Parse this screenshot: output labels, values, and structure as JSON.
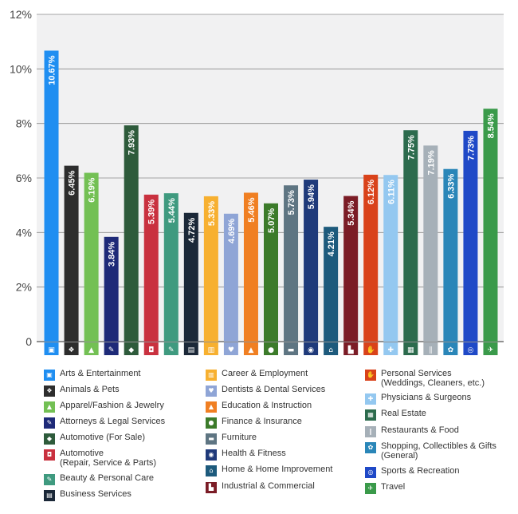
{
  "chart_data": {
    "type": "bar",
    "y_ticks": [
      "12%",
      "10%",
      "8%",
      "6%",
      "4%",
      "2%",
      "0"
    ],
    "ylim": [
      0,
      12
    ],
    "grid": true,
    "legend_position": "bottom",
    "value_label_color": "#ffffff",
    "categories": [
      {
        "name": "Arts & Entertainment",
        "value": 10.67,
        "label": "10.67%",
        "color": "#1f8ef1",
        "icon": "▣",
        "icon_name": "picture-icon"
      },
      {
        "name": "Animals & Pets",
        "value": 6.45,
        "label": "6.45%",
        "color": "#2d2d2d",
        "icon": "❖",
        "icon_name": "paw-icon"
      },
      {
        "name": "Apparel/Fashion & Jewelry",
        "value": 6.19,
        "label": "6.19%",
        "color": "#73c054",
        "icon": "▲",
        "icon_name": "shirt-icon"
      },
      {
        "name": "Attorneys & Legal Services",
        "value": 3.84,
        "label": "3.84%",
        "color": "#1e2a78",
        "icon": "✎",
        "icon_name": "gavel-icon"
      },
      {
        "name": "Automotive (For Sale)",
        "value": 7.93,
        "label": "7.93%",
        "color": "#2e5b3b",
        "icon": "◆",
        "icon_name": "price-tag-icon"
      },
      {
        "name": "Automotive\n(Repair, Service & Parts)",
        "value": 5.39,
        "label": "5.39%",
        "color": "#c9313f",
        "icon": "◘",
        "icon_name": "car-icon"
      },
      {
        "name": "Beauty & Personal Care",
        "value": 5.44,
        "label": "5.44%",
        "color": "#3f9a7f",
        "icon": "✎",
        "icon_name": "brush-icon"
      },
      {
        "name": "Business Services",
        "value": 4.72,
        "label": "4.72%",
        "color": "#1b2838",
        "icon": "▤",
        "icon_name": "document-icon"
      },
      {
        "name": "Career & Employment",
        "value": 5.33,
        "label": "5.33%",
        "color": "#f7b030",
        "icon": "▥",
        "icon_name": "briefcase-icon"
      },
      {
        "name": "Dentists & Dental Services",
        "value": 4.69,
        "label": "4.69%",
        "color": "#8fa5d6",
        "icon": "♥",
        "icon_name": "tooth-icon"
      },
      {
        "name": "Education & Instruction",
        "value": 5.46,
        "label": "5.46%",
        "color": "#f07f22",
        "icon": "▲",
        "icon_name": "graduation-cap-icon"
      },
      {
        "name": "Finance & Insurance",
        "value": 5.07,
        "label": "5.07%",
        "color": "#3c7b2a",
        "icon": "●",
        "icon_name": "money-icon"
      },
      {
        "name": "Furniture",
        "value": 5.73,
        "label": "5.73%",
        "color": "#5e7582",
        "icon": "▬",
        "icon_name": "sofa-icon"
      },
      {
        "name": "Health & Fitness",
        "value": 5.94,
        "label": "5.94%",
        "color": "#1f3a7a",
        "icon": "◉",
        "icon_name": "heart-icon"
      },
      {
        "name": "Home & Home Improvement",
        "value": 4.21,
        "label": "4.21%",
        "color": "#1d5a7c",
        "icon": "⌂",
        "icon_name": "house-icon"
      },
      {
        "name": "Industrial & Commercial",
        "value": 5.34,
        "label": "5.34%",
        "color": "#7b1c26",
        "icon": "▙",
        "icon_name": "factory-icon"
      },
      {
        "name": "Personal Services\n(Weddings, Cleaners, etc.)",
        "value": 6.12,
        "label": "6.12%",
        "color": "#d9421a",
        "icon": "✋",
        "icon_name": "hand-icon"
      },
      {
        "name": "Physicians & Surgeons",
        "value": 6.11,
        "label": "6.11%",
        "color": "#94c8f0",
        "icon": "✚",
        "icon_name": "medical-cross-icon"
      },
      {
        "name": "Real Estate",
        "value": 7.75,
        "label": "7.75%",
        "color": "#2c6b4d",
        "icon": "▦",
        "icon_name": "building-icon"
      },
      {
        "name": "Restaurants & Food",
        "value": 7.19,
        "label": "7.19%",
        "color": "#a6b0b8",
        "icon": "∥",
        "icon_name": "fork-knife-icon"
      },
      {
        "name": "Shopping, Collectibles & Gifts\n(General)",
        "value": 6.33,
        "label": "6.33%",
        "color": "#2a86b8",
        "icon": "✿",
        "icon_name": "gift-icon"
      },
      {
        "name": "Sports & Recreation",
        "value": 7.73,
        "label": "7.73%",
        "color": "#1f49c7",
        "icon": "◎",
        "icon_name": "ball-icon"
      },
      {
        "name": "Travel",
        "value": 8.54,
        "label": "8.54%",
        "color": "#3a9a4a",
        "icon": "✈",
        "icon_name": "airplane-icon"
      }
    ]
  }
}
